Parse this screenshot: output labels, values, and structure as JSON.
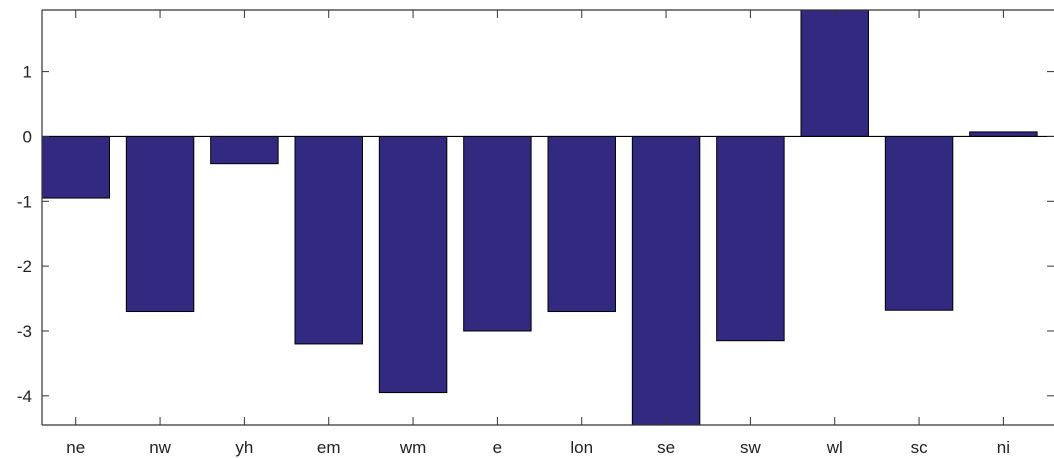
{
  "chart_data": {
    "type": "bar",
    "categories": [
      "ne",
      "nw",
      "yh",
      "em",
      "wm",
      "e",
      "lon",
      "se",
      "sw",
      "wl",
      "sc",
      "ni"
    ],
    "values": [
      -0.95,
      -2.7,
      -0.42,
      -3.2,
      -3.95,
      -3.0,
      -2.7,
      -4.45,
      -3.15,
      1.95,
      -2.68,
      0.07
    ],
    "ylim": [
      -4.45,
      1.95
    ],
    "yticks": [
      1,
      0,
      -1,
      -2,
      -3,
      -4
    ],
    "ytick_labels": [
      "1",
      "0",
      "-1",
      "-2",
      "-3",
      "-4"
    ],
    "bar_color": "#312a80",
    "title": "",
    "xlabel": "",
    "ylabel": ""
  }
}
